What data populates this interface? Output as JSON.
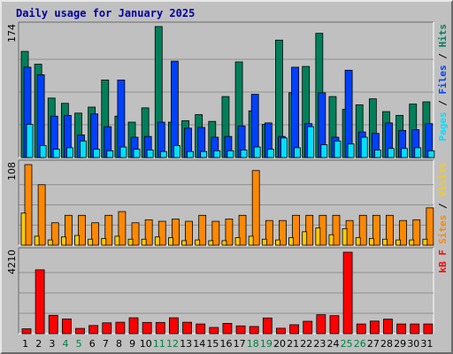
{
  "title": "Daily usage for January 2025",
  "colors": {
    "hits": "#00805a",
    "files": "#0040ff",
    "pages": "#00e0ff",
    "visits": "#ff8800",
    "sites": "#ffcc00",
    "kbytes": "#ff0000",
    "weekend_label": "#008040",
    "weekday_label": "#000000",
    "plot_bg": "#c0c0c0"
  },
  "chart_data": [
    {
      "type": "bar",
      "panel": "hits-files-pages",
      "ymax_label": "174",
      "ylim": [
        0,
        174
      ],
      "series_label_parts": [
        {
          "text": "Pages",
          "color": "#00e0ff"
        },
        {
          "text": " / ",
          "color": "#000000"
        },
        {
          "text": "Files",
          "color": "#0040ff"
        },
        {
          "text": " / ",
          "color": "#000000"
        },
        {
          "text": "Hits",
          "color": "#00805a"
        }
      ],
      "categories": [
        "1",
        "2",
        "3",
        "4",
        "5",
        "6",
        "7",
        "8",
        "9",
        "10",
        "11",
        "12",
        "13",
        "14",
        "15",
        "16",
        "17",
        "18",
        "19",
        "20",
        "21",
        "22",
        "23",
        "24",
        "25",
        "26",
        "27",
        "28",
        "29",
        "30",
        "31"
      ],
      "series": [
        {
          "name": "Hits",
          "values": [
            141,
            124,
            79,
            72,
            59,
            67,
            103,
            55,
            47,
            66,
            174,
            47,
            49,
            57,
            48,
            81,
            127,
            62,
            44,
            156,
            86,
            121,
            165,
            81,
            64,
            70,
            78,
            61,
            56,
            71,
            74
          ]
        },
        {
          "name": "Files",
          "values": [
            120,
            110,
            55,
            56,
            30,
            58,
            41,
            103,
            27,
            28,
            47,
            128,
            39,
            40,
            27,
            28,
            42,
            84,
            46,
            28,
            120,
            45,
            86,
            27,
            116,
            34,
            32,
            46,
            36,
            37,
            45
          ]
        },
        {
          "name": "Pages",
          "values": [
            44,
            16,
            11,
            13,
            22,
            11,
            9,
            14,
            11,
            10,
            8,
            16,
            8,
            8,
            9,
            9,
            10,
            14,
            11,
            26,
            13,
            41,
            17,
            22,
            18,
            27,
            10,
            12,
            12,
            13,
            9
          ]
        }
      ]
    },
    {
      "type": "bar",
      "panel": "visits-sites",
      "ymax_label": "108",
      "ylim": [
        0,
        108
      ],
      "series_label_parts": [
        {
          "text": "Sites",
          "color": "#ff8800"
        },
        {
          "text": " / ",
          "color": "#000000"
        },
        {
          "text": "Visits",
          "color": "#ffcc00"
        }
      ],
      "categories": [
        "1",
        "2",
        "3",
        "4",
        "5",
        "6",
        "7",
        "8",
        "9",
        "10",
        "11",
        "12",
        "13",
        "14",
        "15",
        "16",
        "17",
        "18",
        "19",
        "20",
        "21",
        "22",
        "23",
        "24",
        "25",
        "26",
        "27",
        "28",
        "29",
        "30",
        "31"
      ],
      "series": [
        {
          "name": "Visits",
          "values": [
            108,
            81,
            30,
            40,
            40,
            30,
            40,
            45,
            30,
            34,
            32,
            35,
            32,
            40,
            32,
            35,
            40,
            100,
            33,
            33,
            40,
            40,
            40,
            40,
            33,
            40,
            40,
            40,
            33,
            34,
            50
          ]
        },
        {
          "name": "Sites",
          "values": [
            43,
            12,
            7,
            11,
            13,
            8,
            9,
            12,
            8,
            8,
            11,
            10,
            6,
            7,
            6,
            6,
            10,
            12,
            8,
            7,
            10,
            18,
            23,
            14,
            22,
            10,
            9,
            8,
            7,
            7,
            8
          ]
        }
      ]
    },
    {
      "type": "bar",
      "panel": "kbytes",
      "ymax_label": "4210",
      "ylim": [
        0,
        4210
      ],
      "series_label_parts": [
        {
          "text": "kB F",
          "color": "#ff0000"
        }
      ],
      "categories": [
        "1",
        "2",
        "3",
        "4",
        "5",
        "6",
        "7",
        "8",
        "9",
        "10",
        "11",
        "12",
        "13",
        "14",
        "15",
        "16",
        "17",
        "18",
        "19",
        "20",
        "21",
        "22",
        "23",
        "24",
        "25",
        "26",
        "27",
        "28",
        "29",
        "30",
        "31"
      ],
      "series": [
        {
          "name": "kB F",
          "values": [
            250,
            3300,
            950,
            760,
            270,
            420,
            560,
            590,
            820,
            580,
            580,
            820,
            590,
            500,
            320,
            530,
            400,
            370,
            810,
            280,
            460,
            640,
            980,
            930,
            4210,
            500,
            650,
            750,
            500,
            500,
            500
          ]
        }
      ]
    }
  ],
  "x_axis": {
    "labels": [
      "1",
      "2",
      "3",
      "4",
      "5",
      "6",
      "7",
      "8",
      "9",
      "10",
      "11",
      "12",
      "13",
      "14",
      "15",
      "16",
      "17",
      "18",
      "19",
      "20",
      "21",
      "22",
      "23",
      "24",
      "25",
      "26",
      "27",
      "28",
      "29",
      "30",
      "31"
    ],
    "weekend_days": [
      "4",
      "5",
      "11",
      "12",
      "18",
      "19",
      "25",
      "26"
    ]
  }
}
